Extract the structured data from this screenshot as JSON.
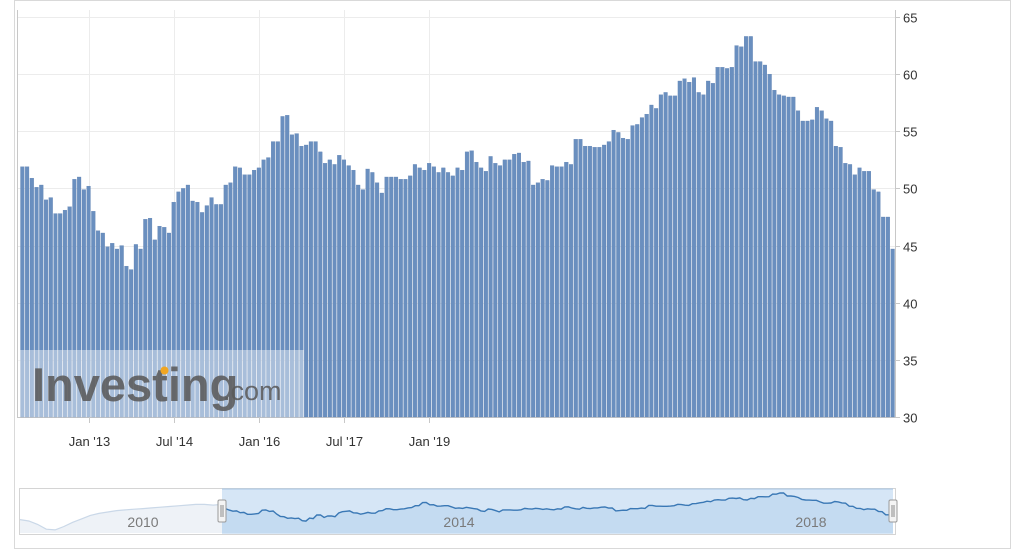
{
  "watermark": {
    "brand": "Investing",
    "suffix": ".com"
  },
  "colors": {
    "bar": "#6a8fbf",
    "bar_edge": "#5b7fb0",
    "nav_line": "#3a78b5",
    "nav_fill": "#cfe2f5",
    "grid": "#ececec"
  },
  "chart_data": {
    "type": "bar",
    "start_month": "2011-11",
    "values": [
      51.9,
      51.9,
      50.9,
      50.1,
      50.3,
      49.0,
      49.2,
      47.8,
      47.8,
      48.1,
      48.4,
      50.8,
      51.0,
      49.9,
      50.2,
      48.0,
      46.3,
      46.1,
      44.9,
      45.2,
      44.7,
      45.0,
      43.2,
      42.9,
      45.1,
      44.7,
      47.3,
      47.4,
      45.5,
      46.7,
      46.6,
      46.1,
      48.8,
      49.7,
      50.0,
      50.3,
      48.9,
      48.8,
      47.9,
      48.5,
      49.2,
      48.6,
      48.6,
      50.3,
      50.5,
      51.9,
      51.8,
      51.2,
      51.2,
      51.6,
      51.8,
      52.5,
      52.7,
      54.1,
      54.1,
      56.3,
      56.4,
      54.7,
      54.8,
      53.7,
      53.8,
      54.1,
      54.1,
      53.2,
      52.2,
      52.5,
      52.1,
      52.9,
      52.5,
      52.0,
      51.6,
      50.3,
      49.9,
      51.7,
      51.4,
      50.5,
      49.6,
      51.0,
      51.0,
      51.0,
      50.8,
      50.8,
      51.1,
      52.1,
      51.8,
      51.6,
      52.2,
      51.9,
      51.4,
      51.8,
      51.4,
      51.1,
      51.8,
      51.6,
      53.2,
      53.3,
      52.3,
      51.8,
      51.5,
      52.8,
      52.2,
      52.0,
      52.5,
      52.5,
      53.0,
      53.1,
      52.3,
      52.4,
      50.3,
      50.5,
      50.8,
      50.7,
      52.0,
      51.9,
      51.9,
      52.3,
      52.1,
      54.3,
      54.3,
      53.7,
      53.7,
      53.6,
      53.6,
      53.8,
      54.1,
      55.1,
      54.9,
      54.4,
      54.3,
      55.5,
      55.6,
      56.2,
      56.5,
      57.3,
      57.0,
      58.2,
      58.4,
      58.1,
      58.1,
      59.4,
      59.6,
      59.3,
      59.7,
      58.4,
      58.2,
      59.4,
      59.2,
      60.6,
      60.6,
      60.5,
      60.6,
      62.5,
      62.4,
      63.3,
      63.3,
      61.1,
      61.1,
      60.8,
      60.0,
      58.6,
      58.2,
      58.1,
      58.0,
      58.0,
      56.8,
      55.9,
      55.9,
      56.0,
      57.1,
      56.8,
      56.1,
      55.9,
      53.7,
      53.6,
      52.2,
      52.1,
      51.2,
      51.8,
      51.5,
      51.5,
      49.9,
      49.7,
      47.5,
      47.5,
      44.7
    ],
    "ylim": [
      30,
      65
    ],
    "y_ticks": [
      "30",
      "35",
      "40",
      "45",
      "50",
      "55",
      "60",
      "65"
    ],
    "x_ticks": [
      {
        "label": "Jan '13",
        "month": "2013-01"
      },
      {
        "label": "Jul '14",
        "month": "2014-07"
      },
      {
        "label": "Jan '16",
        "month": "2016-01"
      },
      {
        "label": "Jul '17",
        "month": "2017-07"
      },
      {
        "label": "Jan '19",
        "month": "2019-01"
      }
    ],
    "navigator": {
      "labels": [
        "2010",
        "2014",
        "2018"
      ],
      "pre_values": [
        44,
        43,
        40.5,
        37,
        36.5,
        39,
        42,
        44.5,
        47,
        48.5,
        49.5,
        50.5,
        51,
        51.5,
        52,
        52.5,
        53,
        53.5,
        54,
        54.5,
        55,
        55,
        54.5,
        55
      ]
    }
  }
}
